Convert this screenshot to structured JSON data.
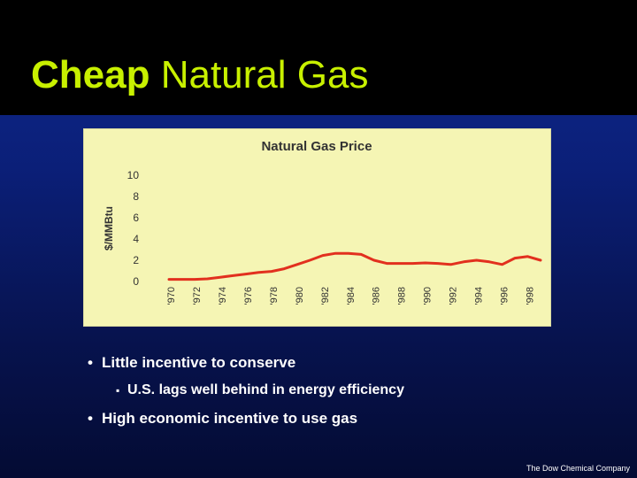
{
  "slide": {
    "title_bold": "Cheap",
    "title_rest": " Natural Gas",
    "bullets": [
      {
        "marker": "•",
        "text": "Little incentive to conserve"
      },
      {
        "marker": "▪",
        "text": "U.S. lags well behind in energy efficiency"
      },
      {
        "marker": "•",
        "text": "High economic incentive to use gas"
      }
    ],
    "footer": "The Dow Chemical Company"
  },
  "colors": {
    "title": "#c8f000",
    "chart_bg": "#f5f5b4",
    "line": "#e2301e"
  },
  "chart_data": {
    "type": "line",
    "title": "Natural Gas Price",
    "xlabel": "",
    "ylabel": "$/MMBtu",
    "ylim": [
      0,
      10
    ],
    "yticks": [
      0,
      2,
      4,
      6,
      8,
      10
    ],
    "xlim": [
      1970,
      1999
    ],
    "xticks": [
      "'970",
      "'972",
      "'974",
      "'976",
      "'978",
      "'980",
      "'982",
      "'984",
      "'986",
      "'988",
      "'990",
      "'992",
      "'994",
      "'996",
      "'998"
    ],
    "grid": false,
    "series": [
      {
        "x": [
          1970,
          1971,
          1972,
          1973,
          1974,
          1975,
          1976,
          1977,
          1978,
          1979,
          1980,
          1981,
          1982,
          1983,
          1984,
          1985,
          1986,
          1987,
          1988,
          1989,
          1990,
          1991,
          1992,
          1993,
          1994,
          1995,
          1996,
          1997,
          1998,
          1999
        ],
        "values": [
          0.2,
          0.2,
          0.2,
          0.25,
          0.4,
          0.55,
          0.7,
          0.85,
          0.95,
          1.2,
          1.6,
          2.0,
          2.45,
          2.65,
          2.65,
          2.55,
          2.0,
          1.7,
          1.7,
          1.7,
          1.75,
          1.7,
          1.6,
          1.85,
          2.0,
          1.85,
          1.6,
          2.2,
          2.35,
          2.0
        ]
      }
    ]
  }
}
